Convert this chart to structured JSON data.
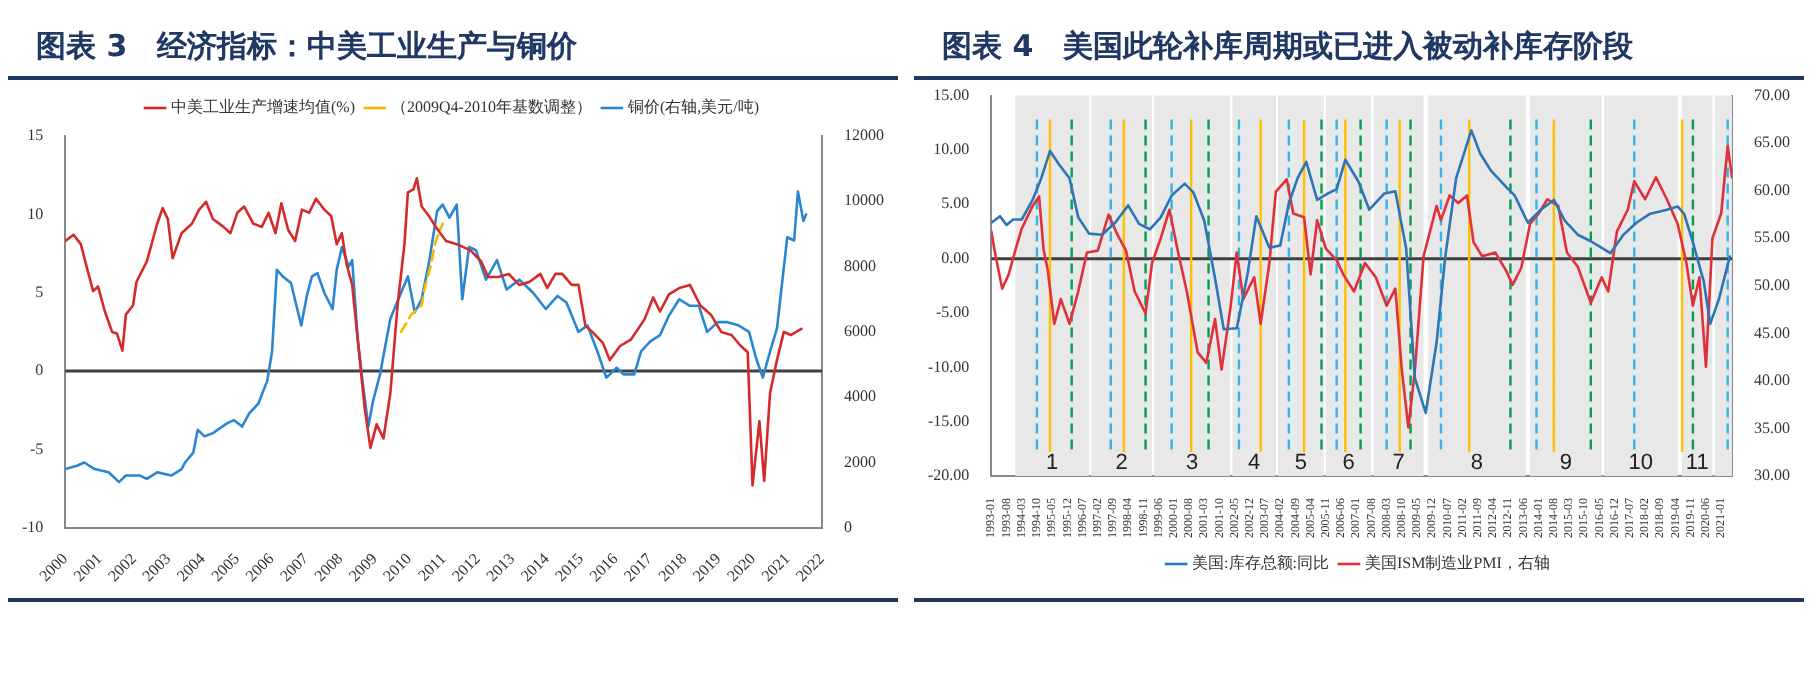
{
  "chart_data": [
    {
      "type": "line",
      "title": "图表 3　经济指标：中美工业生产与铜价",
      "legend": "top",
      "marker": "none",
      "xlim": [
        2000,
        2022
      ],
      "xticks": [
        2000,
        2001,
        2002,
        2003,
        2004,
        2005,
        2006,
        2007,
        2008,
        2009,
        2010,
        2011,
        2012,
        2013,
        2014,
        2015,
        2016,
        2017,
        2018,
        2019,
        2020,
        2021,
        2022
      ],
      "ylim": [
        -10,
        15
      ],
      "yticks": [
        -10,
        -5,
        0,
        5,
        10,
        15
      ],
      "y2lim": [
        0,
        12000
      ],
      "y2ticks": [
        0,
        2000,
        4000,
        6000,
        8000,
        10000,
        12000
      ],
      "grid": false,
      "ref_lines": [
        {
          "axis": "y",
          "value": 0,
          "color": "#404040"
        }
      ],
      "series": [
        {
          "name": "中美工业生产增速均值(%)",
          "color": "#d42a2a",
          "x": [
            2000.0,
            2000.24,
            2000.45,
            2000.65,
            2000.81,
            2000.95,
            2001.15,
            2001.36,
            2001.5,
            2001.66,
            2001.76,
            2001.97,
            2002.07,
            2002.37,
            2002.67,
            2002.83,
            2002.98,
            2003.12,
            2003.38,
            2003.68,
            2003.89,
            2004.09,
            2004.29,
            2004.6,
            2004.8,
            2005.0,
            2005.2,
            2005.47,
            2005.71,
            2005.91,
            2006.11,
            2006.28,
            2006.48,
            2006.68,
            2006.88,
            2007.09,
            2007.29,
            2007.53,
            2007.73,
            2007.89,
            2008.04,
            2008.18,
            2008.34,
            2008.54,
            2008.7,
            2008.87,
            2009.05,
            2009.25,
            2009.45,
            2009.66,
            2009.86,
            2009.96,
            2010.12,
            2010.22,
            2010.36,
            2010.57,
            2010.77,
            2011.07,
            2011.38,
            2011.78,
            2012.09,
            2012.29,
            2012.59,
            2012.89,
            2013.2,
            2013.5,
            2013.81,
            2014.01,
            2014.25,
            2014.45,
            2014.72,
            2014.92,
            2015.12,
            2015.32,
            2015.63,
            2015.83,
            2016.13,
            2016.44,
            2016.84,
            2017.09,
            2017.29,
            2017.55,
            2017.85,
            2018.16,
            2018.46,
            2018.77,
            2019.07,
            2019.37,
            2019.64,
            2019.84,
            2019.98,
            2020.18,
            2020.32,
            2020.49,
            2020.69,
            2020.89,
            2021.09,
            2021.4
          ],
          "values": [
            8.3,
            8.7,
            8.1,
            6.4,
            5.1,
            5.4,
            3.8,
            2.5,
            2.4,
            1.3,
            3.6,
            4.2,
            5.7,
            7.0,
            9.4,
            10.4,
            9.7,
            7.2,
            8.8,
            9.4,
            10.3,
            10.8,
            9.7,
            9.2,
            8.8,
            10.1,
            10.5,
            9.4,
            9.2,
            10.1,
            8.8,
            10.7,
            9.0,
            8.3,
            10.3,
            10.1,
            11.0,
            10.3,
            9.9,
            8.1,
            8.8,
            6.8,
            5.5,
            1.2,
            -2.3,
            -4.9,
            -3.4,
            -4.3,
            -1.4,
            4.2,
            8.1,
            11.4,
            11.6,
            12.3,
            10.5,
            9.9,
            9.2,
            8.3,
            8.1,
            7.7,
            7.0,
            6.0,
            6.0,
            6.2,
            5.5,
            5.7,
            6.2,
            5.3,
            6.2,
            6.2,
            5.5,
            5.5,
            2.9,
            2.5,
            1.8,
            0.7,
            1.6,
            2.0,
            3.3,
            4.7,
            3.8,
            4.9,
            5.3,
            5.5,
            4.2,
            3.6,
            2.5,
            2.3,
            1.6,
            1.2,
            -7.3,
            -3.2,
            -7.0,
            -1.4,
            0.7,
            2.5,
            2.3,
            2.7
          ]
        },
        {
          "name": "（2009Q4-2010年基数调整）",
          "color": "#f5b800",
          "line_style": "dashed",
          "x": [
            2009.76,
            2010.06,
            2010.36,
            2010.47,
            2010.61,
            2010.77,
            2010.97
          ],
          "values": [
            2.5,
            3.6,
            4.2,
            5.5,
            6.6,
            8.3,
            9.4
          ]
        },
        {
          "name": "铜价(右轴,美元/吨)",
          "color": "#2a86d1",
          "axis": "y2",
          "x": [
            2000.0,
            2000.34,
            2000.55,
            2000.85,
            2001.26,
            2001.56,
            2001.76,
            2002.17,
            2002.37,
            2002.67,
            2003.08,
            2003.38,
            2003.48,
            2003.72,
            2003.85,
            2004.05,
            2004.29,
            2004.7,
            2004.9,
            2005.14,
            2005.34,
            2005.61,
            2005.87,
            2006.01,
            2006.15,
            2006.32,
            2006.56,
            2006.72,
            2006.86,
            2007.02,
            2007.17,
            2007.33,
            2007.53,
            2007.77,
            2007.89,
            2008.04,
            2008.24,
            2008.34,
            2008.5,
            2008.64,
            2008.81,
            2008.95,
            2009.15,
            2009.45,
            2009.76,
            2009.96,
            2010.16,
            2010.36,
            2010.57,
            2010.81,
            2010.97,
            2011.17,
            2011.38,
            2011.54,
            2011.74,
            2011.94,
            2012.23,
            2012.55,
            2012.83,
            2013.2,
            2013.6,
            2013.97,
            2014.31,
            2014.57,
            2014.92,
            2015.18,
            2015.47,
            2015.73,
            2016.03,
            2016.23,
            2016.54,
            2016.74,
            2017.0,
            2017.29,
            2017.55,
            2017.85,
            2018.16,
            2018.42,
            2018.66,
            2018.97,
            2019.23,
            2019.57,
            2019.88,
            2020.08,
            2020.28,
            2020.49,
            2020.69,
            2020.99,
            2021.19,
            2021.3,
            2021.46,
            2021.54
          ],
          "values": [
            1800,
            1900,
            2000,
            1800,
            1700,
            1400,
            1600,
            1600,
            1500,
            1700,
            1600,
            1800,
            2000,
            2300,
            3000,
            2800,
            2900,
            3200,
            3300,
            3100,
            3500,
            3800,
            4500,
            5400,
            7900,
            7700,
            7500,
            6800,
            6200,
            7100,
            7700,
            7800,
            7200,
            6700,
            7900,
            8600,
            8000,
            8200,
            5800,
            4500,
            3100,
            3900,
            4700,
            6400,
            7200,
            7700,
            6600,
            7000,
            8100,
            9700,
            9900,
            9500,
            9900,
            7000,
            8600,
            8500,
            7600,
            8200,
            7300,
            7600,
            7200,
            6700,
            7100,
            6900,
            6000,
            6200,
            5400,
            4600,
            4900,
            4700,
            4700,
            5400,
            5700,
            5900,
            6500,
            7000,
            6800,
            6800,
            6000,
            6300,
            6300,
            6200,
            6000,
            5200,
            4600,
            5400,
            6100,
            8900,
            8800,
            10300,
            9400,
            9600
          ]
        }
      ]
    },
    {
      "type": "line",
      "title": "图表 4　美国此轮补库周期或已进入被动补库存阶段",
      "legend": "bottom",
      "marker": "none",
      "xlim": [
        "1993-01",
        "2021-06"
      ],
      "xticks": [
        "1993-01",
        "1993-08",
        "1994-03",
        "1994-10",
        "1995-05",
        "1995-12",
        "1996-07",
        "1997-02",
        "1997-09",
        "1998-04",
        "1998-11",
        "1999-06",
        "2000-01",
        "2000-08",
        "2001-03",
        "2001-10",
        "2002-05",
        "2002-12",
        "2003-07",
        "2004-02",
        "2004-09",
        "2005-04",
        "2005-11",
        "2006-06",
        "2007-01",
        "2007-08",
        "2008-03",
        "2008-10",
        "2009-05",
        "2009-12",
        "2010-07",
        "2011-02",
        "2011-09",
        "2012-04",
        "2012-11",
        "2013-06",
        "2014-01",
        "2014-08",
        "2015-03",
        "2015-10",
        "2016-05",
        "2016-12",
        "2017-07",
        "2018-02",
        "2018-09",
        "2019-04",
        "2019-11",
        "2020-06",
        "2021-01"
      ],
      "ylim": [
        -20,
        15
      ],
      "yticks": [
        {
          "value": -20,
          "label": "-20.00"
        },
        {
          "value": -15,
          "label": "-15.00"
        },
        {
          "value": -10,
          "label": "-10.00"
        },
        {
          "value": -5,
          "label": "-5.00"
        },
        {
          "value": 0,
          "label": "0.00"
        },
        {
          "value": 5,
          "label": "5.00"
        },
        {
          "value": 10,
          "label": "10.00"
        },
        {
          "value": 15,
          "label": "15.00"
        }
      ],
      "y2lim": [
        30,
        70
      ],
      "y2ticks": [
        {
          "value": 30,
          "label": "30.00"
        },
        {
          "value": 35,
          "label": "35.00"
        },
        {
          "value": 40,
          "label": "40.00"
        },
        {
          "value": 45,
          "label": "45.00"
        },
        {
          "value": 50,
          "label": "50.00"
        },
        {
          "value": 55,
          "label": "55.00"
        },
        {
          "value": 60,
          "label": "60.00"
        },
        {
          "value": 65,
          "label": "65.00"
        },
        {
          "value": 70,
          "label": "70.00"
        }
      ],
      "grid": false,
      "bands": [
        {
          "axis": "x",
          "from": "1993-12",
          "to": "1996-10",
          "label": "1",
          "color": "#e8e8e8"
        },
        {
          "axis": "x",
          "from": "1996-11",
          "to": "1999-03",
          "label": "2",
          "color": "#e8e8e8"
        },
        {
          "axis": "x",
          "from": "1999-04",
          "to": "2002-03",
          "label": "3",
          "color": "#e8e8e8"
        },
        {
          "axis": "x",
          "from": "2002-04",
          "to": "2003-12",
          "label": "4",
          "color": "#e8e8e8"
        },
        {
          "axis": "x",
          "from": "2004-01",
          "to": "2005-10",
          "label": "5",
          "color": "#e8e8e8"
        },
        {
          "axis": "x",
          "from": "2005-11",
          "to": "2007-08",
          "label": "6",
          "color": "#e8e8e8"
        },
        {
          "axis": "x",
          "from": "2007-09",
          "to": "2009-08",
          "label": "7",
          "color": "#e8e8e8"
        },
        {
          "axis": "x",
          "from": "2009-10",
          "to": "2013-07",
          "label": "8",
          "color": "#e8e8e8"
        },
        {
          "axis": "x",
          "from": "2013-09",
          "to": "2016-06",
          "label": "9",
          "color": "#e8e8e8"
        },
        {
          "axis": "x",
          "from": "2016-07",
          "to": "2019-05",
          "label": "10",
          "color": "#e8e8e8"
        },
        {
          "axis": "x",
          "from": "2019-07",
          "to": "2020-09",
          "label": "11",
          "color": "#e8e8e8"
        },
        {
          "axis": "x",
          "from": "2020-10",
          "to": "2021-06",
          "color": "#e8e8e8"
        }
      ],
      "ref_lines": [
        {
          "axis": "y",
          "value": 0,
          "color": "#404040"
        },
        {
          "axis": "x",
          "value": "1994-10",
          "color": "#33b5e5",
          "line_style": "dashed"
        },
        {
          "axis": "x",
          "value": "1997-08",
          "color": "#33b5e5",
          "line_style": "dashed"
        },
        {
          "axis": "x",
          "value": "1999-12",
          "color": "#33b5e5",
          "line_style": "dashed"
        },
        {
          "axis": "x",
          "value": "2002-07",
          "color": "#33b5e5",
          "line_style": "dashed"
        },
        {
          "axis": "x",
          "value": "2004-06",
          "color": "#33b5e5",
          "line_style": "dashed"
        },
        {
          "axis": "x",
          "value": "2006-04",
          "color": "#33b5e5",
          "line_style": "dashed"
        },
        {
          "axis": "x",
          "value": "2008-03",
          "color": "#33b5e5",
          "line_style": "dashed"
        },
        {
          "axis": "x",
          "value": "2010-04",
          "color": "#33b5e5",
          "line_style": "dashed"
        },
        {
          "axis": "x",
          "value": "2013-12",
          "color": "#33b5e5",
          "line_style": "dashed"
        },
        {
          "axis": "x",
          "value": "2017-09",
          "color": "#33b5e5",
          "line_style": "dashed"
        },
        {
          "axis": "x",
          "value": "2021-04",
          "color": "#33b5e5",
          "line_style": "dashed"
        },
        {
          "axis": "x",
          "value": "1995-04",
          "color": "#ffc000",
          "line_style": "solid"
        },
        {
          "axis": "x",
          "value": "1998-02",
          "color": "#ffc000",
          "line_style": "solid"
        },
        {
          "axis": "x",
          "value": "2000-09",
          "color": "#ffc000",
          "line_style": "solid"
        },
        {
          "axis": "x",
          "value": "2003-05",
          "color": "#ffc000",
          "line_style": "solid"
        },
        {
          "axis": "x",
          "value": "2005-01",
          "color": "#ffc000",
          "line_style": "solid"
        },
        {
          "axis": "x",
          "value": "2006-08",
          "color": "#ffc000",
          "line_style": "solid"
        },
        {
          "axis": "x",
          "value": "2008-09",
          "color": "#ffc000",
          "line_style": "solid"
        },
        {
          "axis": "x",
          "value": "2011-05",
          "color": "#ffc000",
          "line_style": "solid"
        },
        {
          "axis": "x",
          "value": "2014-08",
          "color": "#ffc000",
          "line_style": "solid"
        },
        {
          "axis": "x",
          "value": "2019-07",
          "color": "#ffc000",
          "line_style": "solid"
        },
        {
          "axis": "x",
          "value": "1996-02",
          "color": "#00a050",
          "line_style": "dashed"
        },
        {
          "axis": "x",
          "value": "1998-12",
          "color": "#00a050",
          "line_style": "dashed"
        },
        {
          "axis": "x",
          "value": "2001-05",
          "color": "#00a050",
          "line_style": "dashed"
        },
        {
          "axis": "x",
          "value": "2005-09",
          "color": "#00a050",
          "line_style": "dashed"
        },
        {
          "axis": "x",
          "value": "2007-03",
          "color": "#00a050",
          "line_style": "dashed"
        },
        {
          "axis": "x",
          "value": "2009-02",
          "color": "#00a050",
          "line_style": "dashed"
        },
        {
          "axis": "x",
          "value": "2012-12",
          "color": "#00a050",
          "line_style": "dashed"
        },
        {
          "axis": "x",
          "value": "2016-01",
          "color": "#00a050",
          "line_style": "dashed"
        },
        {
          "axis": "x",
          "value": "2019-12",
          "color": "#00a050",
          "line_style": "dashed"
        }
      ],
      "series": [
        {
          "name": "美国:库存总额:同比",
          "color": "#2e75b6",
          "x": [
            "1993-01",
            "1993-05",
            "1993-08",
            "1993-11",
            "1994-03",
            "1994-08",
            "1994-12",
            "1995-04",
            "1995-08",
            "1996-01",
            "1996-05",
            "1996-10",
            "1997-04",
            "1997-10",
            "1998-04",
            "1998-09",
            "1999-02",
            "1999-07",
            "1999-12",
            "2000-06",
            "2000-10",
            "2001-03",
            "2001-08",
            "2001-12",
            "2002-06",
            "2002-11",
            "2003-03",
            "2003-09",
            "2004-02",
            "2004-06",
            "2004-10",
            "2005-02",
            "2005-07",
            "2005-12",
            "2006-04",
            "2006-08",
            "2007-02",
            "2007-07",
            "2008-02",
            "2008-07",
            "2008-12",
            "2009-04",
            "2009-09",
            "2010-02",
            "2010-06",
            "2010-11",
            "2011-06",
            "2011-10",
            "2012-03",
            "2012-10",
            "2013-02",
            "2013-08",
            "2014-02",
            "2014-08",
            "2015-01",
            "2015-07",
            "2016-01",
            "2016-10",
            "2017-04",
            "2017-10",
            "2018-04",
            "2018-12",
            "2019-05",
            "2019-08",
            "2019-12",
            "2020-05",
            "2020-08",
            "2020-12",
            "2021-05"
          ],
          "values": [
            3.3,
            3.9,
            3.1,
            3.6,
            3.6,
            5.4,
            7.4,
            9.9,
            8.7,
            7.4,
            3.8,
            2.3,
            2.2,
            3.3,
            4.9,
            3.2,
            2.7,
            3.8,
            5.8,
            6.9,
            6.1,
            3.5,
            -1.8,
            -6.5,
            -6.4,
            -1.4,
            3.9,
            1.0,
            1.2,
            5.1,
            7.4,
            8.9,
            5.4,
            6.0,
            6.4,
            9.1,
            7.1,
            4.5,
            6.0,
            6.2,
            0.9,
            -11,
            -14.2,
            -7.7,
            0.2,
            7.4,
            11.8,
            9.7,
            8.1,
            6.6,
            5.8,
            3.3,
            4.5,
            5.4,
            3.5,
            2.2,
            1.6,
            0.5,
            2.2,
            3.3,
            4.1,
            4.5,
            4.8,
            4.1,
            1.5,
            -2.1,
            -6.0,
            -3.7,
            0.2
          ]
        },
        {
          "name": "美国ISM制造业PMI，右轴",
          "color": "#e0303a",
          "axis": "y2",
          "x": [
            "1993-01",
            "1993-03",
            "1993-06",
            "1993-09",
            "1993-12",
            "1994-03",
            "1994-08",
            "1994-11",
            "1995-01",
            "1995-03",
            "1995-06",
            "1995-09",
            "1996-01",
            "1996-05",
            "1996-09",
            "1997-02",
            "1997-07",
            "1997-11",
            "1998-03",
            "1998-07",
            "1998-12",
            "1999-03",
            "1999-07",
            "1999-11",
            "2000-03",
            "2000-07",
            "2000-12",
            "2001-04",
            "2001-08",
            "2001-11",
            "2002-03",
            "2002-06",
            "2002-09",
            "2003-02",
            "2003-05",
            "2003-09",
            "2003-12",
            "2004-05",
            "2004-08",
            "2005-01",
            "2005-04",
            "2005-07",
            "2005-11",
            "2006-04",
            "2006-07",
            "2006-12",
            "2007-05",
            "2007-10",
            "2008-03",
            "2008-07",
            "2008-10",
            "2009-01",
            "2009-04",
            "2009-08",
            "2010-02",
            "2010-04",
            "2010-08",
            "2010-12",
            "2011-04",
            "2011-07",
            "2011-11",
            "2012-05",
            "2012-10",
            "2013-01",
            "2013-05",
            "2013-09",
            "2014-01",
            "2014-05",
            "2014-10",
            "2015-02",
            "2015-07",
            "2016-01",
            "2016-06",
            "2016-09",
            "2017-01",
            "2017-06",
            "2017-09",
            "2018-02",
            "2018-07",
            "2018-12",
            "2019-05",
            "2019-09",
            "2019-12",
            "2020-03",
            "2020-06",
            "2020-09",
            "2021-01",
            "2021-04",
            "2021-06"
          ],
          "values": [
            55.7,
            53.1,
            49.7,
            51.2,
            53.7,
            56.0,
            58.4,
            59.4,
            53.9,
            51.6,
            46.0,
            48.6,
            46.0,
            49.4,
            53.5,
            53.7,
            57.5,
            55.4,
            53.7,
            49.4,
            47.1,
            52.4,
            55.0,
            58.0,
            53.5,
            49.4,
            43.0,
            41.9,
            46.5,
            41.2,
            47.5,
            53.5,
            48.6,
            50.9,
            46.0,
            52.4,
            59.9,
            61.2,
            57.6,
            57.2,
            51.2,
            56.9,
            53.9,
            52.7,
            51.2,
            49.4,
            52.4,
            50.9,
            47.9,
            49.7,
            41.1,
            35.1,
            41.1,
            53.1,
            58.4,
            56.9,
            59.5,
            58.7,
            59.5,
            54.6,
            53.1,
            53.5,
            51.6,
            50.1,
            51.9,
            56.5,
            57.6,
            59.1,
            58.4,
            53.5,
            52.0,
            48.2,
            50.9,
            49.4,
            55.7,
            58.0,
            61.0,
            59.1,
            61.4,
            59.1,
            56.5,
            52.4,
            47.9,
            50.9,
            41.5,
            55.0,
            57.6,
            64.7,
            61.4
          ]
        }
      ]
    }
  ]
}
